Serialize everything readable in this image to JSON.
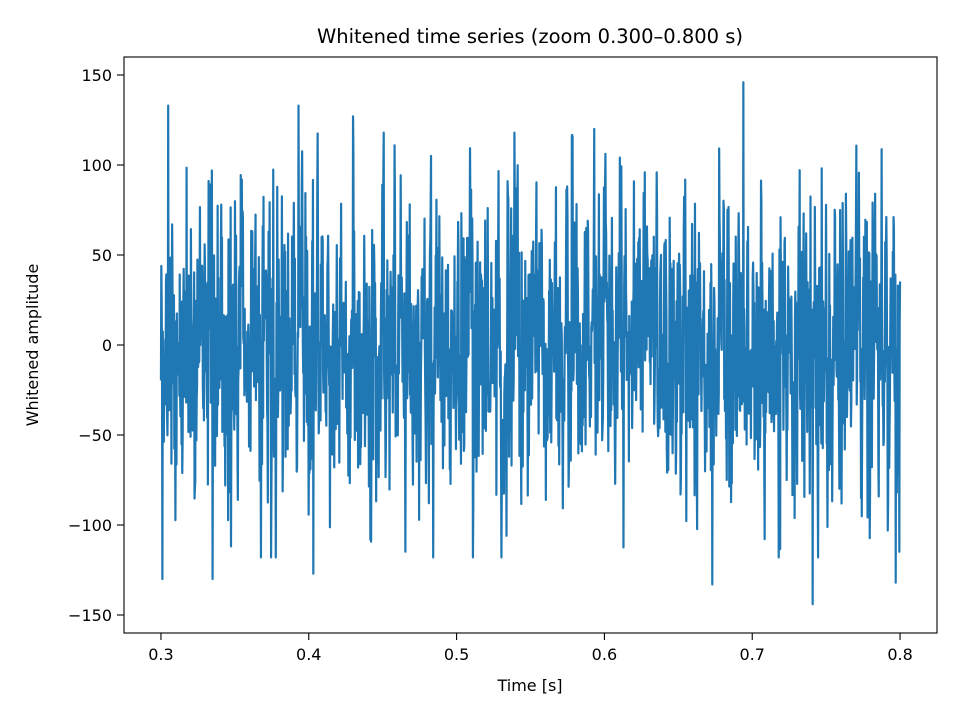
{
  "chart_data": {
    "type": "line",
    "title": "Whitened time series (zoom 0.300–0.800 s)",
    "xlabel": "Time [s]",
    "ylabel": "Whitened amplitude",
    "xlim": [
      0.275,
      0.825
    ],
    "ylim": [
      -160,
      160
    ],
    "x_ticks": [
      0.3,
      0.4,
      0.5,
      0.6,
      0.7,
      0.8
    ],
    "x_tick_labels": [
      "0.3",
      "0.4",
      "0.5",
      "0.6",
      "0.7",
      "0.8"
    ],
    "y_ticks": [
      -150,
      -100,
      -50,
      0,
      50,
      100,
      150
    ],
    "y_tick_labels": [
      "−150",
      "−100",
      "−50",
      "0",
      "50",
      "100",
      "150"
    ],
    "grid": false,
    "legend": "none",
    "series": [
      {
        "color": "#1f77b4",
        "x_range": [
          0.3,
          0.8
        ],
        "samples": 2048,
        "extremes": [
          {
            "x": 0.301,
            "y": -130
          },
          {
            "x": 0.305,
            "y": 133
          },
          {
            "x": 0.335,
            "y": -130
          },
          {
            "x": 0.393,
            "y": 133
          },
          {
            "x": 0.403,
            "y": -127
          },
          {
            "x": 0.43,
            "y": 127
          },
          {
            "x": 0.593,
            "y": 120
          },
          {
            "x": 0.673,
            "y": -133
          },
          {
            "x": 0.694,
            "y": 146
          },
          {
            "x": 0.741,
            "y": -144
          },
          {
            "x": 0.797,
            "y": -132
          }
        ]
      }
    ]
  }
}
